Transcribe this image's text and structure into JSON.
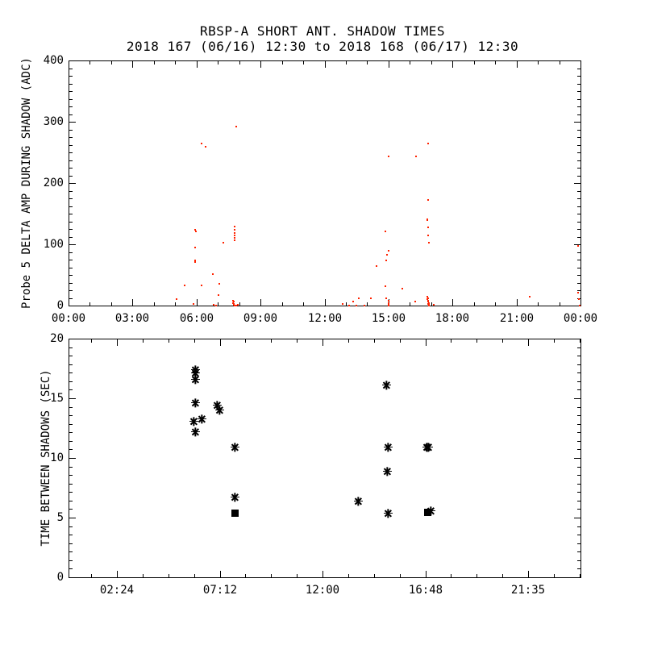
{
  "title": {
    "line1": "RBSP-A SHORT ANT. SHADOW TIMES",
    "line2": "2018 167 (06/16) 12:30 to 2018 168 (06/17) 12:30"
  },
  "colors": {
    "background": "#ffffff",
    "axis": "#000000",
    "top_panel_points": "#ff2200",
    "bottom_panel_points": "#000000"
  },
  "chart_data": [
    {
      "type": "scatter",
      "panel": "top",
      "title": "RBSP-A SHORT ANT. SHADOW TIMES",
      "subtitle": "2018 167 (06/16) 12:30 to 2018 168 (06/17) 12:30",
      "xlabel": "",
      "ylabel": "Probe 5 DELTA AMP DURING SHADOW (ADC)",
      "xlim": [
        0,
        24
      ],
      "ylim": [
        0,
        400
      ],
      "grid": false,
      "xticks": [
        {
          "v": 0,
          "label": "00:00"
        },
        {
          "v": 3,
          "label": "03:00"
        },
        {
          "v": 6,
          "label": "06:00"
        },
        {
          "v": 9,
          "label": "09:00"
        },
        {
          "v": 12,
          "label": "12:00"
        },
        {
          "v": 15,
          "label": "15:00"
        },
        {
          "v": 18,
          "label": "18:00"
        },
        {
          "v": 21,
          "label": "21:00"
        },
        {
          "v": 24,
          "label": "00:00"
        }
      ],
      "x_minor_step": 1,
      "yticks": [
        {
          "v": 0,
          "label": "0"
        },
        {
          "v": 100,
          "label": "100"
        },
        {
          "v": 200,
          "label": "200"
        },
        {
          "v": 300,
          "label": "300"
        },
        {
          "v": 400,
          "label": "400"
        }
      ],
      "y_minor_step": 12.5,
      "marker": "dot",
      "color": "#ff2200",
      "points_units": "[hours, ADC]",
      "points": [
        [
          5.06,
          11
        ],
        [
          5.44,
          33
        ],
        [
          5.86,
          2
        ],
        [
          5.93,
          124
        ],
        [
          5.97,
          121
        ],
        [
          5.94,
          95
        ],
        [
          5.93,
          74
        ],
        [
          5.95,
          71
        ],
        [
          6.24,
          264
        ],
        [
          6.41,
          259
        ],
        [
          6.25,
          33
        ],
        [
          6.78,
          51
        ],
        [
          6.81,
          1
        ],
        [
          6.9,
          0
        ],
        [
          7.02,
          17
        ],
        [
          7.05,
          36
        ],
        [
          7.27,
          103
        ],
        [
          7.7,
          8
        ],
        [
          7.72,
          4
        ],
        [
          7.74,
          1
        ],
        [
          7.75,
          6
        ],
        [
          7.76,
          2
        ],
        [
          7.77,
          0
        ],
        [
          7.78,
          129
        ],
        [
          7.78,
          124
        ],
        [
          7.79,
          119
        ],
        [
          7.79,
          114
        ],
        [
          7.8,
          110
        ],
        [
          7.8,
          106
        ],
        [
          7.85,
          292
        ],
        [
          7.88,
          0
        ],
        [
          7.92,
          1
        ],
        [
          12.85,
          3
        ],
        [
          13.14,
          0
        ],
        [
          13.35,
          7
        ],
        [
          13.48,
          0
        ],
        [
          13.6,
          12
        ],
        [
          13.86,
          0
        ],
        [
          14.18,
          12
        ],
        [
          14.44,
          64
        ],
        [
          14.84,
          31
        ],
        [
          14.87,
          121
        ],
        [
          14.88,
          12
        ],
        [
          14.9,
          74
        ],
        [
          14.92,
          83
        ],
        [
          15.0,
          244
        ],
        [
          15.0,
          89
        ],
        [
          15.0,
          8
        ],
        [
          15.0,
          4
        ],
        [
          15.01,
          1
        ],
        [
          15.02,
          0
        ],
        [
          15.65,
          27
        ],
        [
          16.25,
          7
        ],
        [
          16.29,
          244
        ],
        [
          16.8,
          14
        ],
        [
          16.81,
          141
        ],
        [
          16.82,
          139
        ],
        [
          16.82,
          10
        ],
        [
          16.84,
          127
        ],
        [
          16.84,
          6
        ],
        [
          16.85,
          2
        ],
        [
          16.86,
          264
        ],
        [
          16.86,
          173
        ],
        [
          16.86,
          12
        ],
        [
          16.87,
          115
        ],
        [
          16.87,
          8
        ],
        [
          16.88,
          102
        ],
        [
          16.88,
          4
        ],
        [
          16.89,
          1
        ],
        [
          16.9,
          0
        ],
        [
          17.14,
          1
        ],
        [
          21.6,
          15
        ],
        [
          23.87,
          97
        ],
        [
          23.9,
          21
        ],
        [
          23.92,
          11
        ],
        [
          23.95,
          0
        ]
      ]
    },
    {
      "type": "scatter",
      "panel": "bottom",
      "xlabel": "",
      "ylabel": "TIME BETWEEN SHADOWS (SEC)",
      "xlim": [
        0.141,
        24.047
      ],
      "ylim": [
        0,
        20
      ],
      "grid": false,
      "xticks": [
        {
          "v": 2.4,
          "label": "02:24"
        },
        {
          "v": 7.2,
          "label": "07:12"
        },
        {
          "v": 12.0,
          "label": "12:00"
        },
        {
          "v": 16.8,
          "label": "16:48"
        },
        {
          "v": 21.5833,
          "label": "21:35"
        }
      ],
      "x_minor_step": 1.2,
      "yticks": [
        {
          "v": 0,
          "label": "0"
        },
        {
          "v": 5,
          "label": "5"
        },
        {
          "v": 10,
          "label": "10"
        },
        {
          "v": 15,
          "label": "15"
        },
        {
          "v": 20,
          "label": "20"
        }
      ],
      "y_minor_step": 0.7143,
      "marker": "asterisk",
      "color": "#000000",
      "points_units": "[hours, seconds]",
      "points": [
        [
          6.06,
          17.4
        ],
        [
          6.06,
          17.1
        ],
        [
          6.06,
          16.6
        ],
        [
          6.06,
          14.6
        ],
        [
          6.0,
          13.1
        ],
        [
          6.37,
          13.3
        ],
        [
          6.06,
          12.2
        ],
        [
          7.08,
          14.4
        ],
        [
          7.19,
          14.0
        ],
        [
          7.91,
          10.9
        ],
        [
          7.92,
          6.7
        ],
        [
          13.68,
          6.4
        ],
        [
          15.01,
          16.1
        ],
        [
          15.05,
          10.9
        ],
        [
          15.02,
          8.9
        ],
        [
          15.05,
          5.4
        ],
        [
          16.88,
          10.9
        ],
        [
          16.96,
          10.9
        ],
        [
          17.06,
          5.6
        ]
      ],
      "square_points": [
        [
          7.91,
          5.4
        ],
        [
          16.9,
          5.45
        ]
      ]
    }
  ]
}
